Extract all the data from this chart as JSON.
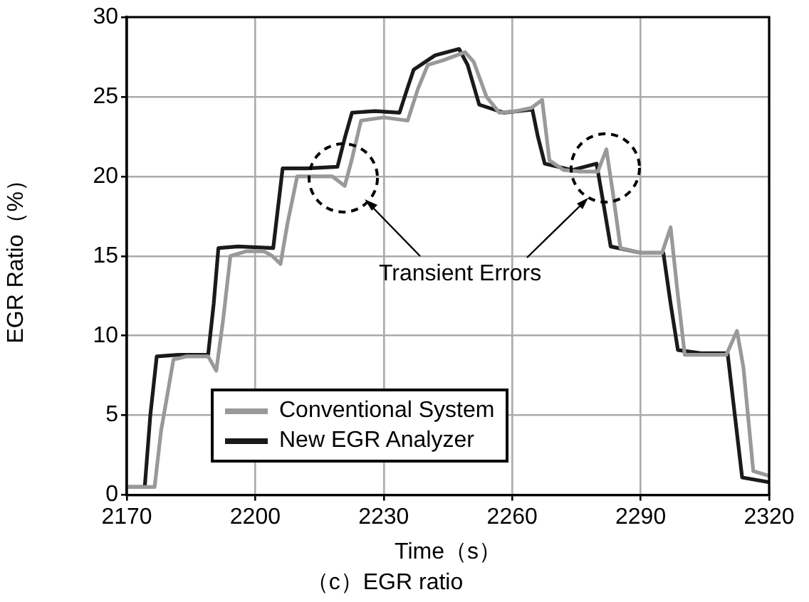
{
  "chart_data": {
    "type": "line",
    "xlabel": "Time（s）",
    "ylabel": "EGR Ratio（%）",
    "title": "（c）EGR ratio",
    "xlim": [
      2170,
      2320
    ],
    "xticks": [
      2170,
      2200,
      2230,
      2260,
      2290,
      2320
    ],
    "ylim": [
      0,
      30
    ],
    "yticks": [
      0,
      5,
      10,
      15,
      20,
      25,
      30
    ],
    "grid": true,
    "legend": "bottom left",
    "marker": "none",
    "line_style": "solid",
    "annotations": [
      "Transient Errors"
    ],
    "series": [
      {
        "name": "Conventional System",
        "color": "#999999",
        "x": [
          2170,
          2176.5,
          2178,
          2180.9,
          2184,
          2189,
          2190.9,
          2192.5,
          2194.2,
          2198,
          2202,
          2204,
          2205.9,
          2207.5,
          2209.8,
          2214,
          2218,
          2220.9,
          2222.5,
          2224.7,
          2230,
          2235.6,
          2238,
          2240.3,
          2244,
          2249,
          2251,
          2254,
          2257,
          2261,
          2264.5,
          2267,
          2268.7,
          2272,
          2276,
          2280,
          2282,
          2283.5,
          2285.3,
          2290,
          2295,
          2297,
          2298.5,
          2300.3,
          2305,
          2310,
          2312.5,
          2314,
          2316.3,
          2320
        ],
        "values": [
          0.5,
          0.5,
          4,
          8.5,
          8.7,
          8.7,
          7.8,
          11,
          15,
          15.3,
          15.3,
          15,
          14.5,
          17,
          20,
          20,
          20,
          19.4,
          21,
          23.5,
          23.7,
          23.5,
          25.5,
          27,
          27.3,
          27.8,
          27.2,
          25,
          24,
          24.1,
          24.3,
          24.8,
          21,
          20.4,
          20.3,
          20.3,
          21.7,
          19,
          15.5,
          15.2,
          15.2,
          16.8,
          13,
          8.8,
          8.8,
          8.8,
          10.3,
          8,
          1.5,
          1.2
        ]
      },
      {
        "name": "New EGR Analyzer",
        "color": "#1a1a1a",
        "x": [
          2170,
          2174.2,
          2175.5,
          2177,
          2182,
          2189,
          2190.3,
          2191.4,
          2196,
          2204.2,
          2205.3,
          2206.4,
          2212,
          2219.2,
          2221,
          2222.6,
          2228,
          2233.7,
          2235.5,
          2237,
          2242,
          2247.6,
          2249.6,
          2252.3,
          2258,
          2264.7,
          2266,
          2267.6,
          2274,
          2279.7,
          2281.5,
          2283,
          2290,
          2295.3,
          2297,
          2298.7,
          2304,
          2310.3,
          2312,
          2313.7,
          2320
        ],
        "values": [
          0.5,
          0.5,
          5,
          8.7,
          8.8,
          8.8,
          12,
          15.5,
          15.6,
          15.5,
          18,
          20.5,
          20.5,
          20.6,
          22.5,
          24,
          24.1,
          24,
          25.5,
          26.7,
          27.6,
          28,
          27,
          24.5,
          24,
          24.2,
          22.5,
          20.8,
          20.4,
          20.8,
          18,
          15.6,
          15.2,
          15.2,
          12,
          9.1,
          8.9,
          8.9,
          5,
          1.1,
          0.8
        ]
      }
    ]
  }
}
